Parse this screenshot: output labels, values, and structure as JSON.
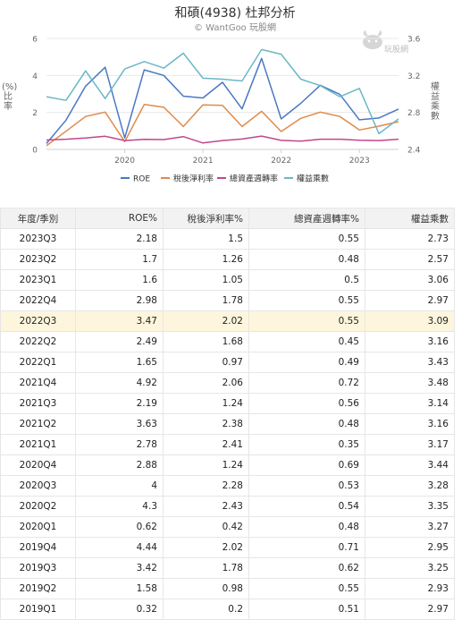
{
  "header": {
    "title": "和碩(4938) 杜邦分析",
    "subtitle": "© WantGoo 玩股網",
    "watermark": "玩股網"
  },
  "chart_data": {
    "type": "line",
    "title": "和碩(4938) 杜邦分析",
    "ylabel": "(%) 比率",
    "y2label": "權益乘數",
    "ylim": [
      0,
      6
    ],
    "y2lim": [
      2.4,
      3.6
    ],
    "yticks": [
      "0",
      "2",
      "4",
      "6"
    ],
    "y2ticks": [
      "2.4",
      "2.8",
      "3.2",
      "3.6"
    ],
    "xticks": [
      {
        "label": "2020",
        "at": "2020Q1"
      },
      {
        "label": "2021",
        "at": "2021Q1"
      },
      {
        "label": "2022",
        "at": "2022Q1"
      },
      {
        "label": "2023",
        "at": "2023Q1"
      }
    ],
    "grid": true,
    "legend_position": "bottom",
    "x": [
      "2019Q1",
      "2019Q2",
      "2019Q3",
      "2019Q4",
      "2020Q1",
      "2020Q2",
      "2020Q3",
      "2020Q4",
      "2021Q1",
      "2021Q2",
      "2021Q3",
      "2021Q4",
      "2022Q1",
      "2022Q2",
      "2022Q3",
      "2022Q4",
      "2023Q1",
      "2023Q2",
      "2023Q3"
    ],
    "series": [
      {
        "name": "ROE",
        "axis": "left",
        "color": "#4a78c2",
        "values": [
          0.32,
          1.58,
          3.42,
          4.44,
          0.62,
          4.3,
          4,
          2.88,
          2.78,
          3.63,
          2.19,
          4.92,
          1.65,
          2.49,
          3.47,
          2.98,
          1.6,
          1.7,
          2.18
        ]
      },
      {
        "name": "稅後淨利率",
        "axis": "left",
        "color": "#e08a4a",
        "values": [
          0.2,
          0.98,
          1.78,
          2.02,
          0.42,
          2.43,
          2.28,
          1.24,
          2.41,
          2.38,
          1.24,
          2.06,
          0.97,
          1.68,
          2.02,
          1.78,
          1.05,
          1.26,
          1.5
        ]
      },
      {
        "name": "總資產週轉率",
        "axis": "left",
        "color": "#c2468c",
        "values": [
          0.51,
          0.55,
          0.62,
          0.71,
          0.48,
          0.54,
          0.53,
          0.69,
          0.35,
          0.48,
          0.56,
          0.72,
          0.49,
          0.45,
          0.55,
          0.55,
          0.5,
          0.48,
          0.55
        ]
      },
      {
        "name": "權益乘數",
        "axis": "right",
        "color": "#6bb8c4",
        "values": [
          2.97,
          2.93,
          3.25,
          2.95,
          3.27,
          3.35,
          3.28,
          3.44,
          3.17,
          3.16,
          3.14,
          3.48,
          3.43,
          3.16,
          3.09,
          2.97,
          3.06,
          2.57,
          2.73
        ]
      }
    ]
  },
  "table": {
    "headers": [
      "年度/季別",
      "ROE%",
      "稅後淨利率%",
      "總資產週轉率%",
      "權益乘數"
    ],
    "highlight_row": "2022Q3",
    "rows": [
      [
        "2023Q3",
        "2.18",
        "1.5",
        "0.55",
        "2.73"
      ],
      [
        "2023Q2",
        "1.7",
        "1.26",
        "0.48",
        "2.57"
      ],
      [
        "2023Q1",
        "1.6",
        "1.05",
        "0.5",
        "3.06"
      ],
      [
        "2022Q4",
        "2.98",
        "1.78",
        "0.55",
        "2.97"
      ],
      [
        "2022Q3",
        "3.47",
        "2.02",
        "0.55",
        "3.09"
      ],
      [
        "2022Q2",
        "2.49",
        "1.68",
        "0.45",
        "3.16"
      ],
      [
        "2022Q1",
        "1.65",
        "0.97",
        "0.49",
        "3.43"
      ],
      [
        "2021Q4",
        "4.92",
        "2.06",
        "0.72",
        "3.48"
      ],
      [
        "2021Q3",
        "2.19",
        "1.24",
        "0.56",
        "3.14"
      ],
      [
        "2021Q2",
        "3.63",
        "2.38",
        "0.48",
        "3.16"
      ],
      [
        "2021Q1",
        "2.78",
        "2.41",
        "0.35",
        "3.17"
      ],
      [
        "2020Q4",
        "2.88",
        "1.24",
        "0.69",
        "3.44"
      ],
      [
        "2020Q3",
        "4",
        "2.28",
        "0.53",
        "3.28"
      ],
      [
        "2020Q2",
        "4.3",
        "2.43",
        "0.54",
        "3.35"
      ],
      [
        "2020Q1",
        "0.62",
        "0.42",
        "0.48",
        "3.27"
      ],
      [
        "2019Q4",
        "4.44",
        "2.02",
        "0.71",
        "2.95"
      ],
      [
        "2019Q3",
        "3.42",
        "1.78",
        "0.62",
        "3.25"
      ],
      [
        "2019Q2",
        "1.58",
        "0.98",
        "0.55",
        "2.93"
      ],
      [
        "2019Q1",
        "0.32",
        "0.2",
        "0.51",
        "2.97"
      ]
    ]
  }
}
